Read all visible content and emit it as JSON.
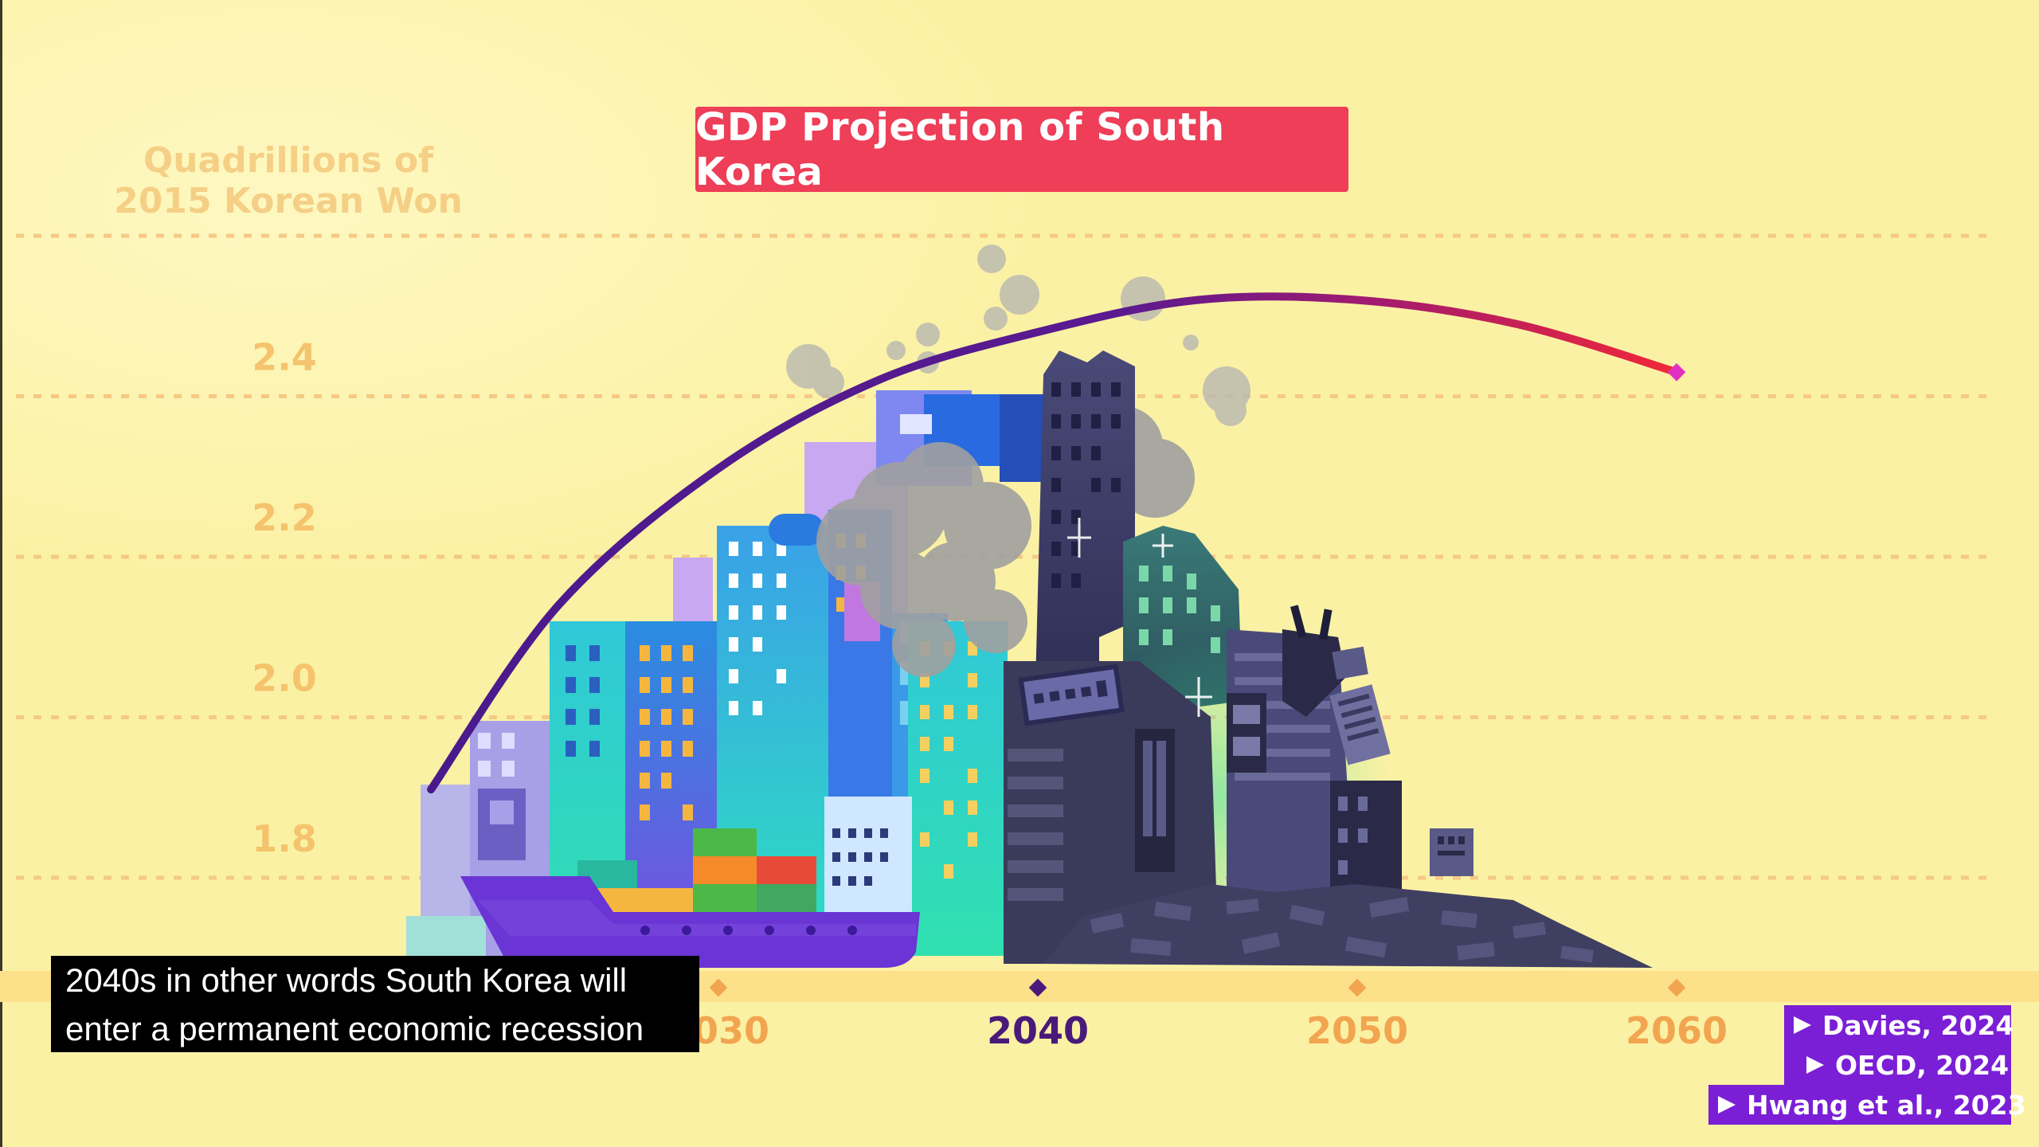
{
  "title": "GDP Projection of South Korea",
  "subtitle_lines": [
    "2040s in other words South Korea will",
    "enter a permanent economic recession"
  ],
  "references": [
    "Davies, 2024",
    "OECD, 2024",
    "Hwang et al., 2023"
  ],
  "colors": {
    "background": "#fbf1a4",
    "title_box": "#ee3e58",
    "curve_start": "#4a1a8c",
    "curve_end": "#f02838",
    "reference_box": "#7a1fd6",
    "timeline_band": "#fde08a"
  },
  "chart_data": {
    "type": "line",
    "title": "GDP Projection of South Korea",
    "ylabel_lines": [
      "Quadrillions of",
      "2015 Korean Won"
    ],
    "xlabel": "",
    "y_ticks": [
      1.8,
      2.0,
      2.2,
      2.4
    ],
    "y_gridlines": [
      1.8,
      2.0,
      2.2,
      2.4,
      2.6
    ],
    "ylim": [
      1.8,
      2.6
    ],
    "x_ticks": [
      "2030",
      "2040",
      "2050",
      "2060"
    ],
    "x_tick_values": [
      2030,
      2040,
      2050,
      2060
    ],
    "x_active_tick": "2040",
    "xlim": [
      2020,
      2070
    ],
    "grid": true,
    "series": [
      {
        "x": [
          2021,
          2025,
          2030,
          2035,
          2040,
          2045,
          2050,
          2055,
          2060
        ],
        "y": [
          1.91,
          2.14,
          2.31,
          2.42,
          2.48,
          2.52,
          2.52,
          2.49,
          2.43
        ]
      }
    ]
  }
}
